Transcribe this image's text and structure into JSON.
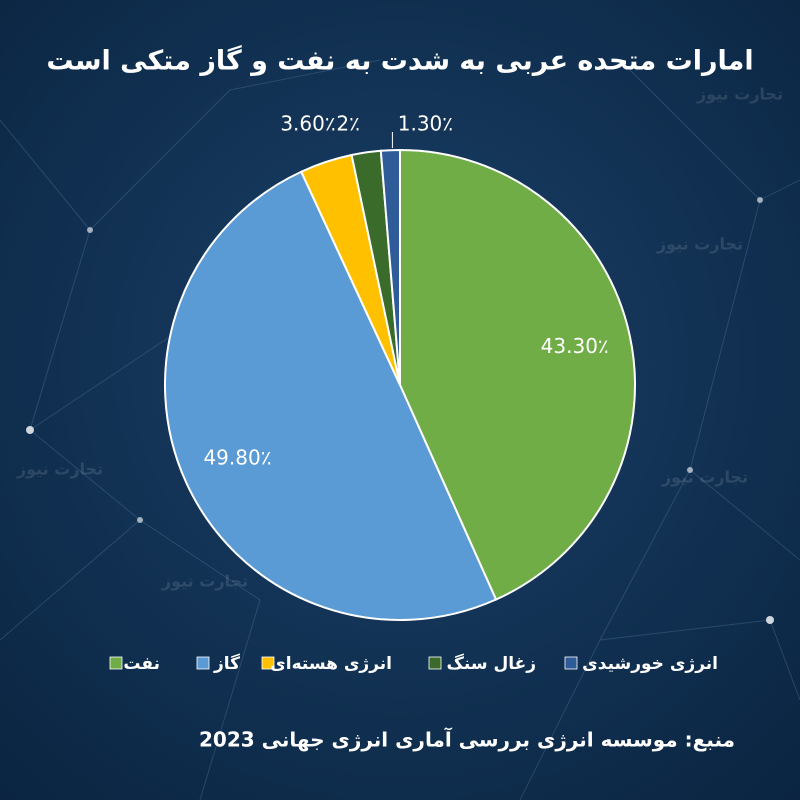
{
  "chart_data": {
    "type": "pie",
    "title": "امارات متحده عربی به شدت به نفت و گاز متکی است",
    "categories": [
      "نفت",
      "گاز",
      "انرژی هسته‌ای",
      "زغال سنگ",
      "انرژی خورشیدی"
    ],
    "values": [
      43.3,
      49.8,
      3.6,
      2,
      1.3
    ],
    "value_labels": [
      "43.30٪",
      "49.80٪",
      "3.60٪",
      "2٪",
      "1.30٪"
    ],
    "colors": [
      "#70ad47",
      "#5b9bd5",
      "#ffc000",
      "#3b6b2a",
      "#2f5b98"
    ],
    "source": "منبع: موسسه انرژی بررسی آماری انرژی جهانی 2023",
    "watermark": "تجارت نیوز"
  }
}
